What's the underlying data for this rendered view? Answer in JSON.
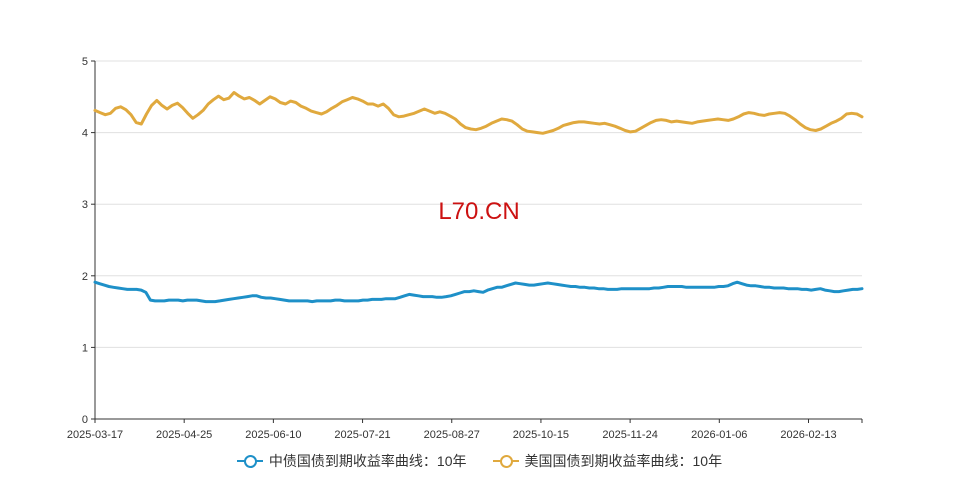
{
  "watermark": "L70.CN",
  "colors": {
    "cn": "#1e90c8",
    "us": "#e0a93e",
    "grid": "#e0e0e0",
    "axis": "#333333"
  },
  "chart_data": {
    "type": "line",
    "ylim": [
      0,
      5
    ],
    "yticks": [
      "0",
      "1",
      "2",
      "3",
      "4",
      "5"
    ],
    "grid": true,
    "legend_position": "bottom-center",
    "x_tick_labels": [
      "2025-03-17",
      "2025-04-25",
      "2025-06-10",
      "2025-07-21",
      "2025-08-27",
      "2025-10-15",
      "2025-11-24",
      "2026-01-06",
      "2026-02-13"
    ],
    "series": [
      {
        "name": "中债国债到期收益率曲线：10年",
        "values": [
          1.91,
          1.89,
          1.87,
          1.85,
          1.84,
          1.83,
          1.82,
          1.81,
          1.81,
          1.81,
          1.8,
          1.77,
          1.66,
          1.65,
          1.65,
          1.65,
          1.66,
          1.66,
          1.66,
          1.65,
          1.66,
          1.66,
          1.66,
          1.65,
          1.64,
          1.64,
          1.64,
          1.65,
          1.66,
          1.67,
          1.68,
          1.69,
          1.7,
          1.71,
          1.72,
          1.72,
          1.7,
          1.69,
          1.69,
          1.68,
          1.67,
          1.66,
          1.65,
          1.65,
          1.65,
          1.65,
          1.65,
          1.64,
          1.65,
          1.65,
          1.65,
          1.65,
          1.66,
          1.66,
          1.65,
          1.65,
          1.65,
          1.65,
          1.66,
          1.66,
          1.67,
          1.67,
          1.67,
          1.68,
          1.68,
          1.68,
          1.7,
          1.72,
          1.74,
          1.73,
          1.72,
          1.71,
          1.71,
          1.71,
          1.7,
          1.7,
          1.71,
          1.72,
          1.74,
          1.76,
          1.78,
          1.78,
          1.79,
          1.78,
          1.77,
          1.8,
          1.82,
          1.84,
          1.84,
          1.86,
          1.88,
          1.9,
          1.89,
          1.88,
          1.87,
          1.87,
          1.88,
          1.89,
          1.9,
          1.89,
          1.88,
          1.87,
          1.86,
          1.85,
          1.85,
          1.84,
          1.84,
          1.83,
          1.83,
          1.82,
          1.82,
          1.81,
          1.81,
          1.81,
          1.82,
          1.82,
          1.82,
          1.82,
          1.82,
          1.82,
          1.82,
          1.83,
          1.83,
          1.84,
          1.85,
          1.85,
          1.85,
          1.85,
          1.84,
          1.84,
          1.84,
          1.84,
          1.84,
          1.84,
          1.84,
          1.85,
          1.85,
          1.86,
          1.89,
          1.91,
          1.89,
          1.87,
          1.86,
          1.86,
          1.85,
          1.84,
          1.84,
          1.83,
          1.83,
          1.83,
          1.82,
          1.82,
          1.82,
          1.81,
          1.81,
          1.8,
          1.81,
          1.82,
          1.8,
          1.79,
          1.78,
          1.78,
          1.79,
          1.8,
          1.81,
          1.81,
          1.82
        ]
      },
      {
        "name": "美国国债到期收益率曲线：10年",
        "values": [
          4.31,
          4.28,
          4.25,
          4.27,
          4.34,
          4.36,
          4.32,
          4.25,
          4.14,
          4.12,
          4.26,
          4.38,
          4.45,
          4.38,
          4.33,
          4.38,
          4.41,
          4.35,
          4.27,
          4.2,
          4.25,
          4.31,
          4.4,
          4.46,
          4.51,
          4.46,
          4.48,
          4.56,
          4.51,
          4.47,
          4.49,
          4.45,
          4.4,
          4.45,
          4.5,
          4.47,
          4.42,
          4.4,
          4.44,
          4.42,
          4.37,
          4.34,
          4.3,
          4.28,
          4.26,
          4.29,
          4.34,
          4.38,
          4.43,
          4.46,
          4.49,
          4.47,
          4.44,
          4.4,
          4.4,
          4.37,
          4.4,
          4.34,
          4.25,
          4.22,
          4.23,
          4.25,
          4.27,
          4.3,
          4.33,
          4.3,
          4.27,
          4.29,
          4.27,
          4.23,
          4.19,
          4.12,
          4.07,
          4.05,
          4.04,
          4.06,
          4.09,
          4.13,
          4.16,
          4.19,
          4.18,
          4.16,
          4.11,
          4.05,
          4.02,
          4.01,
          4.0,
          3.99,
          4.01,
          4.03,
          4.06,
          4.1,
          4.12,
          4.14,
          4.15,
          4.15,
          4.14,
          4.13,
          4.12,
          4.13,
          4.11,
          4.09,
          4.06,
          4.03,
          4.01,
          4.02,
          4.06,
          4.1,
          4.14,
          4.17,
          4.18,
          4.17,
          4.15,
          4.16,
          4.15,
          4.14,
          4.13,
          4.15,
          4.16,
          4.17,
          4.18,
          4.19,
          4.18,
          4.17,
          4.19,
          4.22,
          4.26,
          4.28,
          4.27,
          4.25,
          4.24,
          4.26,
          4.27,
          4.28,
          4.27,
          4.23,
          4.18,
          4.12,
          4.07,
          4.04,
          4.03,
          4.05,
          4.09,
          4.13,
          4.16,
          4.2,
          4.26,
          4.27,
          4.26,
          4.22
        ]
      }
    ]
  }
}
